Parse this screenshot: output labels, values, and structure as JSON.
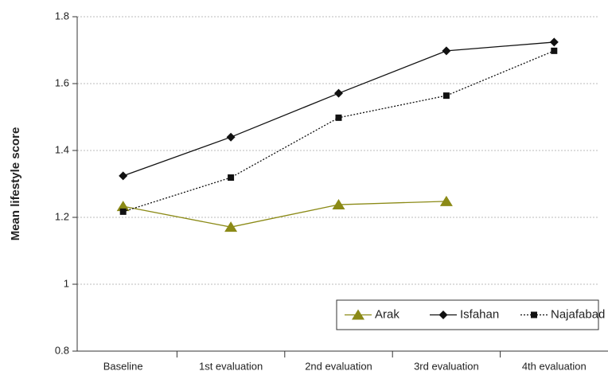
{
  "chart_data": {
    "type": "line",
    "y_label": "Mean lifestyle score",
    "categories": [
      "Baseline",
      "1st evaluation",
      "2nd evaluation",
      "3rd evaluation",
      "4th evaluation"
    ],
    "series": [
      {
        "name": "Arak",
        "color": "#8b8a16",
        "marker": "triangle",
        "line_style": "solid",
        "values": [
          1.233,
          1.171,
          1.238,
          1.248,
          null
        ]
      },
      {
        "name": "Isfahan",
        "color": "#111111",
        "marker": "diamond",
        "line_style": "solid",
        "values": [
          1.324,
          1.44,
          1.571,
          1.698,
          1.724
        ]
      },
      {
        "name": "Najafabad",
        "color": "#111111",
        "marker": "square",
        "line_style": "dotted",
        "values": [
          1.217,
          1.319,
          1.498,
          1.564,
          1.698
        ]
      }
    ],
    "ylim": [
      0.8,
      1.8
    ],
    "yticks": [
      0.8,
      1,
      1.2,
      1.4,
      1.6,
      1.8
    ],
    "grid": true,
    "legend": "lower right"
  }
}
